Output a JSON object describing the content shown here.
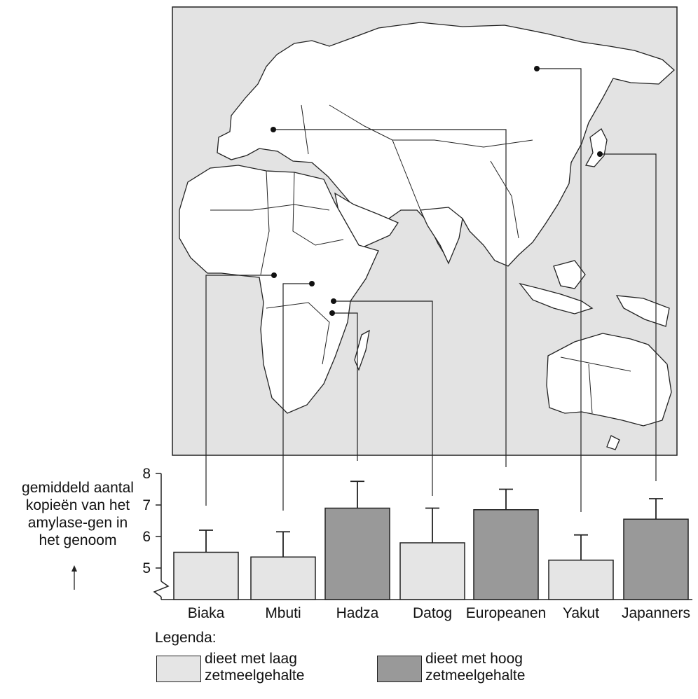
{
  "chart_data": {
    "type": "bar",
    "categories": [
      "Biaka",
      "Mbuti",
      "Hadza",
      "Datog",
      "Europeanen",
      "Yakut",
      "Japanners"
    ],
    "values": [
      5.5,
      5.35,
      6.9,
      5.8,
      6.85,
      5.25,
      6.55
    ],
    "errors": [
      0.7,
      0.8,
      0.85,
      1.1,
      0.65,
      0.8,
      0.65
    ],
    "diet": [
      "laag",
      "laag",
      "hoog",
      "laag",
      "hoog",
      "laag",
      "hoog"
    ],
    "ylim": [
      4,
      8
    ],
    "yticks": [
      "5",
      "6",
      "7",
      "8"
    ],
    "ylabel_lines": [
      "gemiddeld aantal",
      "kopieën van het",
      "amylase-gen in",
      "het genoom"
    ],
    "axis_break": true,
    "colors": {
      "low": "#e5e5e5",
      "high": "#999999",
      "map_sea": "#e3e3e3",
      "map_land": "#ffffff"
    }
  },
  "map": {
    "population_order": [
      "Biaka",
      "Mbuti",
      "Hadza",
      "Datog",
      "Europeanen",
      "Yakut",
      "Japanners"
    ]
  },
  "legend": {
    "title": "Legenda:",
    "low": [
      "dieet met laag",
      "zetmeelgehalte"
    ],
    "high": [
      "dieet met hoog",
      "zetmeelgehalte"
    ]
  }
}
